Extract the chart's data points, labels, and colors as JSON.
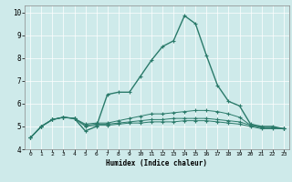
{
  "title": "",
  "xlabel": "Humidex (Indice chaleur)",
  "ylabel": "",
  "background_color": "#ceeaea",
  "line_color": "#2a7a6a",
  "xlim": [
    -0.5,
    23.5
  ],
  "ylim": [
    4.0,
    10.3
  ],
  "yticks": [
    4,
    5,
    6,
    7,
    8,
    9,
    10
  ],
  "xticks": [
    0,
    1,
    2,
    3,
    4,
    5,
    6,
    7,
    8,
    9,
    10,
    11,
    12,
    13,
    14,
    15,
    16,
    17,
    18,
    19,
    20,
    21,
    22,
    23
  ],
  "series": [
    [
      4.5,
      5.0,
      5.3,
      5.4,
      5.35,
      4.8,
      5.0,
      6.4,
      6.5,
      6.5,
      7.2,
      7.9,
      8.5,
      8.75,
      9.85,
      9.5,
      8.1,
      6.8,
      6.1,
      5.9,
      5.1,
      5.0,
      5.0,
      4.9
    ],
    [
      4.5,
      5.0,
      5.3,
      5.4,
      5.35,
      5.1,
      5.15,
      5.15,
      5.25,
      5.35,
      5.45,
      5.55,
      5.55,
      5.6,
      5.65,
      5.7,
      5.7,
      5.65,
      5.55,
      5.4,
      5.05,
      4.95,
      4.95,
      4.9
    ],
    [
      4.5,
      5.0,
      5.3,
      5.4,
      5.35,
      5.05,
      5.1,
      5.1,
      5.15,
      5.2,
      5.25,
      5.3,
      5.3,
      5.35,
      5.35,
      5.35,
      5.35,
      5.3,
      5.25,
      5.2,
      5.05,
      4.95,
      4.95,
      4.9
    ],
    [
      4.5,
      5.0,
      5.3,
      5.4,
      5.35,
      5.0,
      5.05,
      5.05,
      5.1,
      5.15,
      5.15,
      5.2,
      5.2,
      5.2,
      5.25,
      5.25,
      5.25,
      5.2,
      5.15,
      5.1,
      5.0,
      4.9,
      4.9,
      4.9
    ]
  ]
}
